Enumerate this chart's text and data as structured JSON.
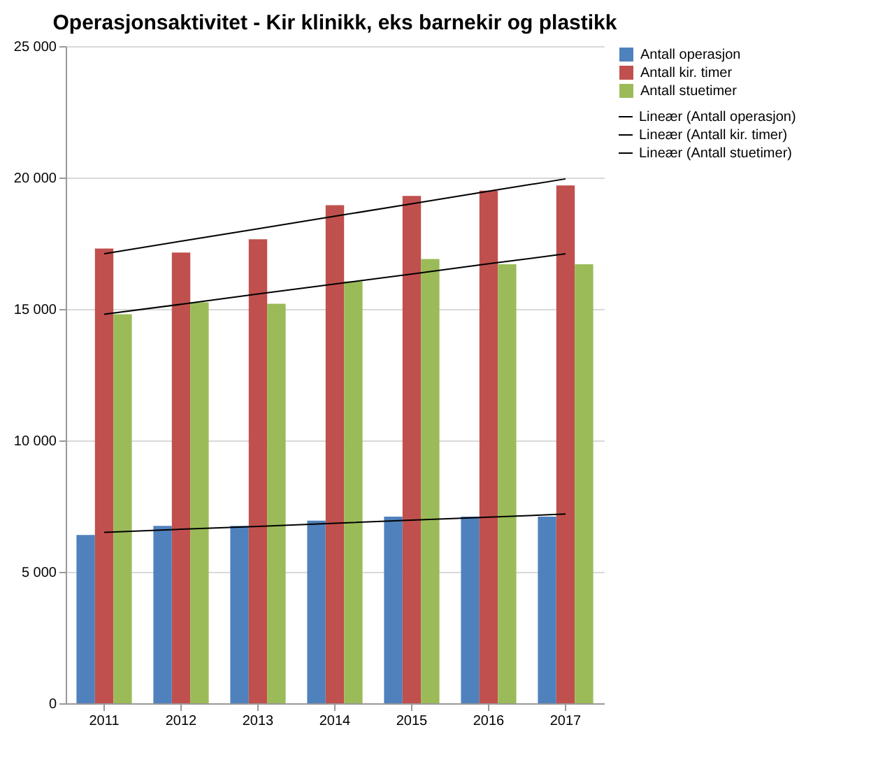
{
  "chart_data": {
    "type": "bar",
    "title": "Operasjonsaktivitet - Kir klinikk,  eks barnekir og plastikk",
    "categories": [
      "2011",
      "2012",
      "2013",
      "2014",
      "2015",
      "2016",
      "2017"
    ],
    "series": [
      {
        "name": "Antall operasjon",
        "color": "#4f81bd",
        "values": [
          6400,
          6750,
          6750,
          6950,
          7100,
          7100,
          7100
        ]
      },
      {
        "name": "Antall kir. timer",
        "color": "#c0504d",
        "values": [
          17300,
          17150,
          17650,
          18950,
          19300,
          19500,
          19700
        ]
      },
      {
        "name": "Antall stuetimer",
        "color": "#9bbb59",
        "values": [
          14800,
          15250,
          15200,
          16050,
          16900,
          16700,
          16700
        ]
      },
      {
        "name": "Lineær (Antall operasjon)",
        "type": "line",
        "color": "#000000",
        "values": [
          6500,
          6620,
          6730,
          6850,
          6970,
          7080,
          7200
        ]
      },
      {
        "name": "Lineær (Antall kir. timer)",
        "type": "line",
        "color": "#000000",
        "values": [
          17100,
          17580,
          18050,
          18530,
          19000,
          19480,
          19950
        ]
      },
      {
        "name": "Lineær (Antall stuetimer)",
        "type": "line",
        "color": "#000000",
        "values": [
          14800,
          15180,
          15570,
          15950,
          16330,
          16720,
          17100
        ]
      }
    ],
    "ylim": [
      0,
      25000
    ],
    "yticks": [
      {
        "value": 0,
        "label": "0"
      },
      {
        "value": 5000,
        "label": "5 000"
      },
      {
        "value": 10000,
        "label": "10 000"
      },
      {
        "value": 15000,
        "label": "15 000"
      },
      {
        "value": 20000,
        "label": "20 000"
      },
      {
        "value": 25000,
        "label": "25 000"
      }
    ],
    "grid": "y",
    "legend": "right"
  }
}
